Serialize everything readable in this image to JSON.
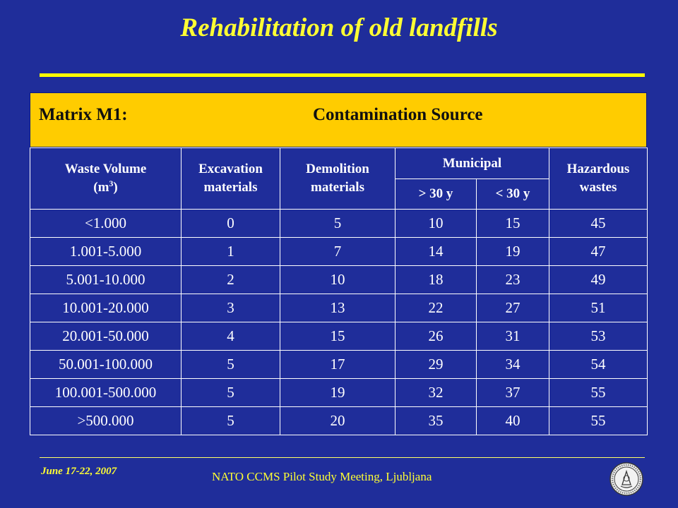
{
  "title": "Rehabilitation of old landfills",
  "matrix": {
    "label": "Matrix M1:",
    "source": "Contamination Source"
  },
  "table": {
    "headers": {
      "waste_volume": "Waste Volume",
      "waste_volume_unit_base": "(m",
      "waste_volume_unit_exp": "3",
      "waste_volume_unit_close": ")",
      "excavation": "Excavation materials",
      "demolition": "Demolition materials",
      "municipal": "Municipal",
      "municipal_old": "> 30 y",
      "municipal_new": "< 30 y",
      "hazardous": "Hazardous wastes"
    },
    "rows": [
      [
        "<1.000",
        "0",
        "5",
        "10",
        "15",
        "45"
      ],
      [
        "1.001-5.000",
        "1",
        "7",
        "14",
        "19",
        "47"
      ],
      [
        "5.001-10.000",
        "2",
        "10",
        "18",
        "23",
        "49"
      ],
      [
        "10.001-20.000",
        "3",
        "13",
        "22",
        "27",
        "51"
      ],
      [
        "20.001-50.000",
        "4",
        "15",
        "26",
        "31",
        "53"
      ],
      [
        "50.001-100.000",
        "5",
        "17",
        "29",
        "34",
        "54"
      ],
      [
        "100.001-500.000",
        "5",
        "19",
        "32",
        "37",
        "55"
      ],
      [
        ">500.000",
        "5",
        "20",
        "35",
        "40",
        "55"
      ]
    ]
  },
  "footer": {
    "date": "June 17-22, 2007",
    "meeting": "NATO CCMS Pilot Study Meeting, Ljubljana"
  },
  "colors": {
    "background": "#1f2d9a",
    "title": "#ffff33",
    "header_band": "#ffcc00",
    "text": "#ffffff"
  },
  "icons": {
    "seal": "university-seal-icon"
  }
}
